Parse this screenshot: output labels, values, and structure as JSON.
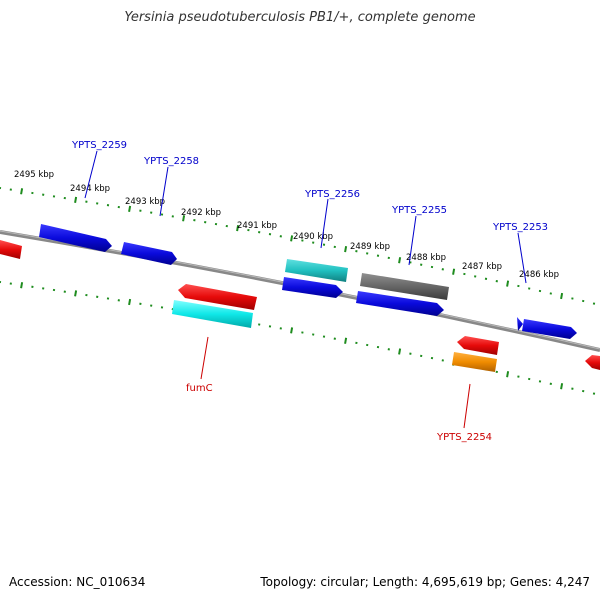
{
  "title": "Yersinia pseudotuberculosis PB1/+, complete genome",
  "footer": {
    "accession": "Accession: NC_010634",
    "topology": "Topology: circular; Length: 4,695,619 bp; Genes: 4,247"
  },
  "colors": {
    "backbone": "#888888",
    "ticks": "#1e8c1e",
    "gene_blue": "#0a0adc",
    "gene_red": "#e60a0a",
    "gene_cyan": "#10e8e8",
    "gene_teal": "#20c0c0",
    "gene_gray": "#666666",
    "gene_orange": "#f08c00",
    "label_blue": "#0000cc",
    "label_red": "#cc0000"
  },
  "kbp_labels": [
    "2495 kbp",
    "2494 kbp",
    "2493 kbp",
    "2492 kbp",
    "2491 kbp",
    "2490 kbp",
    "2489 kbp",
    "2488 kbp",
    "2487 kbp",
    "2486 kbp"
  ],
  "gene_labels": {
    "ypts_2259": "YPTS_2259",
    "ypts_2258": "YPTS_2258",
    "ypts_2256": "YPTS_2256",
    "ypts_2255": "YPTS_2255",
    "ypts_2253": "YPTS_2253",
    "fumc": "fumC",
    "ypts_2254": "YPTS_2254"
  }
}
